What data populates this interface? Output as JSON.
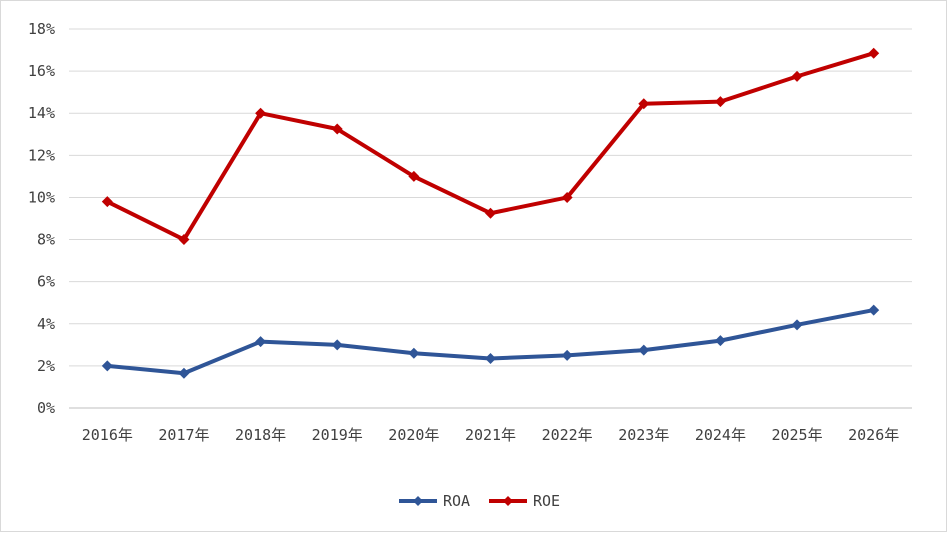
{
  "chart_data": {
    "type": "line",
    "categories": [
      "2016年",
      "2017年",
      "2018年",
      "2019年",
      "2020年",
      "2021年",
      "2022年",
      "2023年",
      "2024年",
      "2025年",
      "2026年"
    ],
    "series": [
      {
        "name": "ROA",
        "color": "#2f5597",
        "values": [
          2.0,
          1.65,
          3.15,
          3.0,
          2.6,
          2.35,
          2.5,
          2.75,
          3.2,
          3.95,
          4.65
        ]
      },
      {
        "name": "ROE",
        "color": "#c00000",
        "values": [
          9.8,
          8.0,
          14.0,
          13.25,
          11.0,
          9.25,
          10.0,
          14.45,
          14.55,
          15.75,
          16.85
        ]
      }
    ],
    "y_ticks": [
      "0%",
      "2%",
      "4%",
      "6%",
      "8%",
      "10%",
      "12%",
      "14%",
      "16%",
      "18%"
    ],
    "ylim": [
      0,
      18
    ],
    "grid": true,
    "legend_position": "bottom"
  }
}
